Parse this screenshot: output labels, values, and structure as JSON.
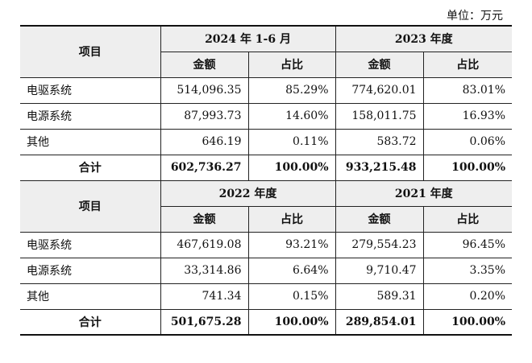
{
  "unit_note": "单位：万元",
  "header_label": "项目",
  "col_amount": "金额",
  "col_ratio": "占比",
  "block1": {
    "period_left": "2024 年 1-6 月",
    "period_right": "2023 年度",
    "rows": [
      {
        "item": "电驱系统",
        "amt_l": "514,096.35",
        "pct_l": "85.29%",
        "amt_r": "774,620.01",
        "pct_r": "83.01%"
      },
      {
        "item": "电源系统",
        "amt_l": "87,993.73",
        "pct_l": "14.60%",
        "amt_r": "158,011.75",
        "pct_r": "16.93%"
      },
      {
        "item": "其他",
        "amt_l": "646.19",
        "pct_l": "0.11%",
        "amt_r": "583.72",
        "pct_r": "0.06%"
      }
    ],
    "total": {
      "item": "合计",
      "amt_l": "602,736.27",
      "pct_l": "100.00%",
      "amt_r": "933,215.48",
      "pct_r": "100.00%"
    }
  },
  "block2": {
    "period_left": "2022 年度",
    "period_right": "2021 年度",
    "rows": [
      {
        "item": "电驱系统",
        "amt_l": "467,619.08",
        "pct_l": "93.21%",
        "amt_r": "279,554.23",
        "pct_r": "96.45%"
      },
      {
        "item": "电源系统",
        "amt_l": "33,314.86",
        "pct_l": "6.64%",
        "amt_r": "9,710.47",
        "pct_r": "3.35%"
      },
      {
        "item": "其他",
        "amt_l": "741.34",
        "pct_l": "0.15%",
        "amt_r": "589.31",
        "pct_r": "0.20%"
      }
    ],
    "total": {
      "item": "合计",
      "amt_l": "501,675.28",
      "pct_l": "100.00%",
      "amt_r": "289,854.01",
      "pct_r": "100.00%"
    }
  }
}
